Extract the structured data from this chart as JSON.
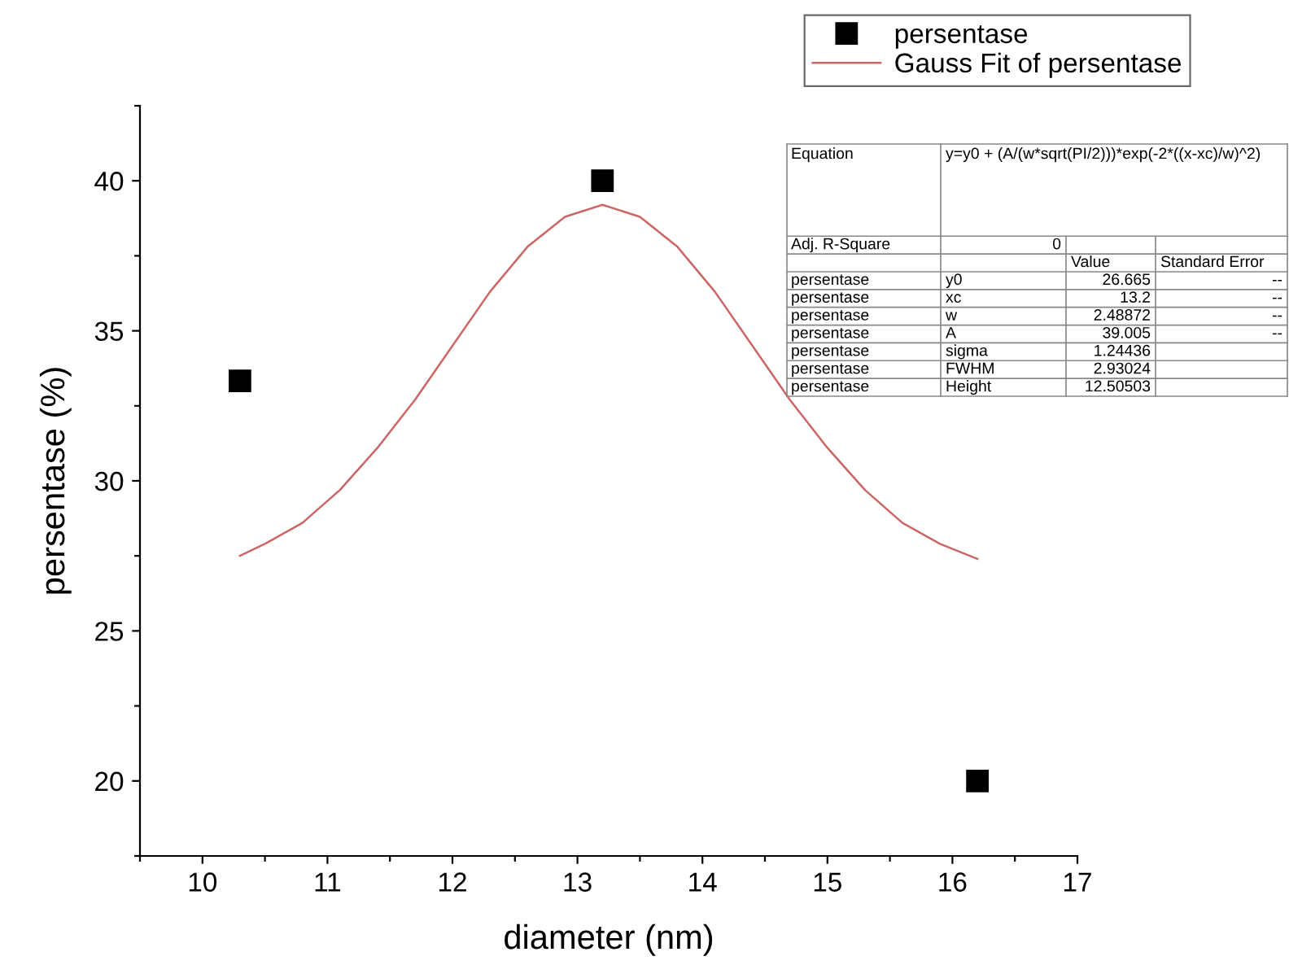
{
  "chart_data": [
    {
      "type": "scatter",
      "xlabel": "diameter (nm)",
      "ylabel": "persentase (%)",
      "xlim": [
        9.5,
        17
      ],
      "ylim": [
        17.5,
        42.5
      ],
      "xticks": [
        {
          "value": 9.5,
          "label": null
        },
        10,
        {
          "value": 10.5,
          "label": null
        },
        11,
        {
          "value": 11.5,
          "label": null
        },
        12,
        {
          "value": 12.5,
          "label": null
        },
        13,
        {
          "value": 13.5,
          "label": null
        },
        14,
        {
          "value": 14.5,
          "label": null
        },
        15,
        {
          "value": 15.5,
          "label": null
        },
        16,
        {
          "value": 16.5,
          "label": null
        },
        17
      ],
      "yticks": [
        {
          "value": 17.5,
          "label": null
        },
        20,
        {
          "value": 22.5,
          "label": null
        },
        25,
        {
          "value": 27.5,
          "label": null
        },
        30,
        {
          "value": 32.5,
          "label": null
        },
        35,
        {
          "value": 37.5,
          "label": null
        },
        40,
        {
          "value": 42.5,
          "label": null
        }
      ],
      "grid": false,
      "legend": "top right",
      "series": [
        {
          "name": "persentase",
          "type": "scatter",
          "marker": "square",
          "color": "#000000",
          "x": [
            10.3,
            13.2,
            16.2
          ],
          "values": [
            33.33,
            40,
            20
          ]
        },
        {
          "name": "Gauss Fit of persentase",
          "type": "line",
          "marker": "none",
          "line_style": "solid",
          "color": "#cc6666",
          "x": [
            10.3,
            10.5,
            10.8,
            11.1,
            11.4,
            11.7,
            12.0,
            12.3,
            12.6,
            12.9,
            13.2,
            13.5,
            13.8,
            14.1,
            14.4,
            14.7,
            15.0,
            15.3,
            15.6,
            15.9,
            16.2
          ],
          "values": [
            27.5,
            27.9,
            28.6,
            29.7,
            31.1,
            32.7,
            34.5,
            36.3,
            37.8,
            38.8,
            39.2,
            38.8,
            37.8,
            36.3,
            34.5,
            32.7,
            31.1,
            29.7,
            28.6,
            27.9,
            27.4
          ]
        }
      ]
    },
    {
      "type": "other",
      "annotations": [
        [
          "Equation",
          "y=y0 + (A/(w*sqrt(PI/2)))*exp(-2*((x-xc)/w)^2)"
        ],
        [
          "Adj. R-Square",
          "0",
          null,
          null
        ],
        [
          null,
          null,
          "Value",
          "Standard Error"
        ],
        [
          "persentase",
          "y0",
          "26.665",
          "--"
        ],
        [
          "persentase",
          "xc",
          "13.2",
          "--"
        ],
        [
          "persentase",
          "w",
          "2.48872",
          "--"
        ],
        [
          "persentase",
          "A",
          "39.005",
          "--"
        ],
        [
          "persentase",
          "sigma",
          "1.24436",
          null
        ],
        [
          "persentase",
          "FWHM",
          "2.93024",
          null
        ],
        [
          "persentase",
          "Height",
          "12.50503",
          null
        ]
      ]
    }
  ]
}
